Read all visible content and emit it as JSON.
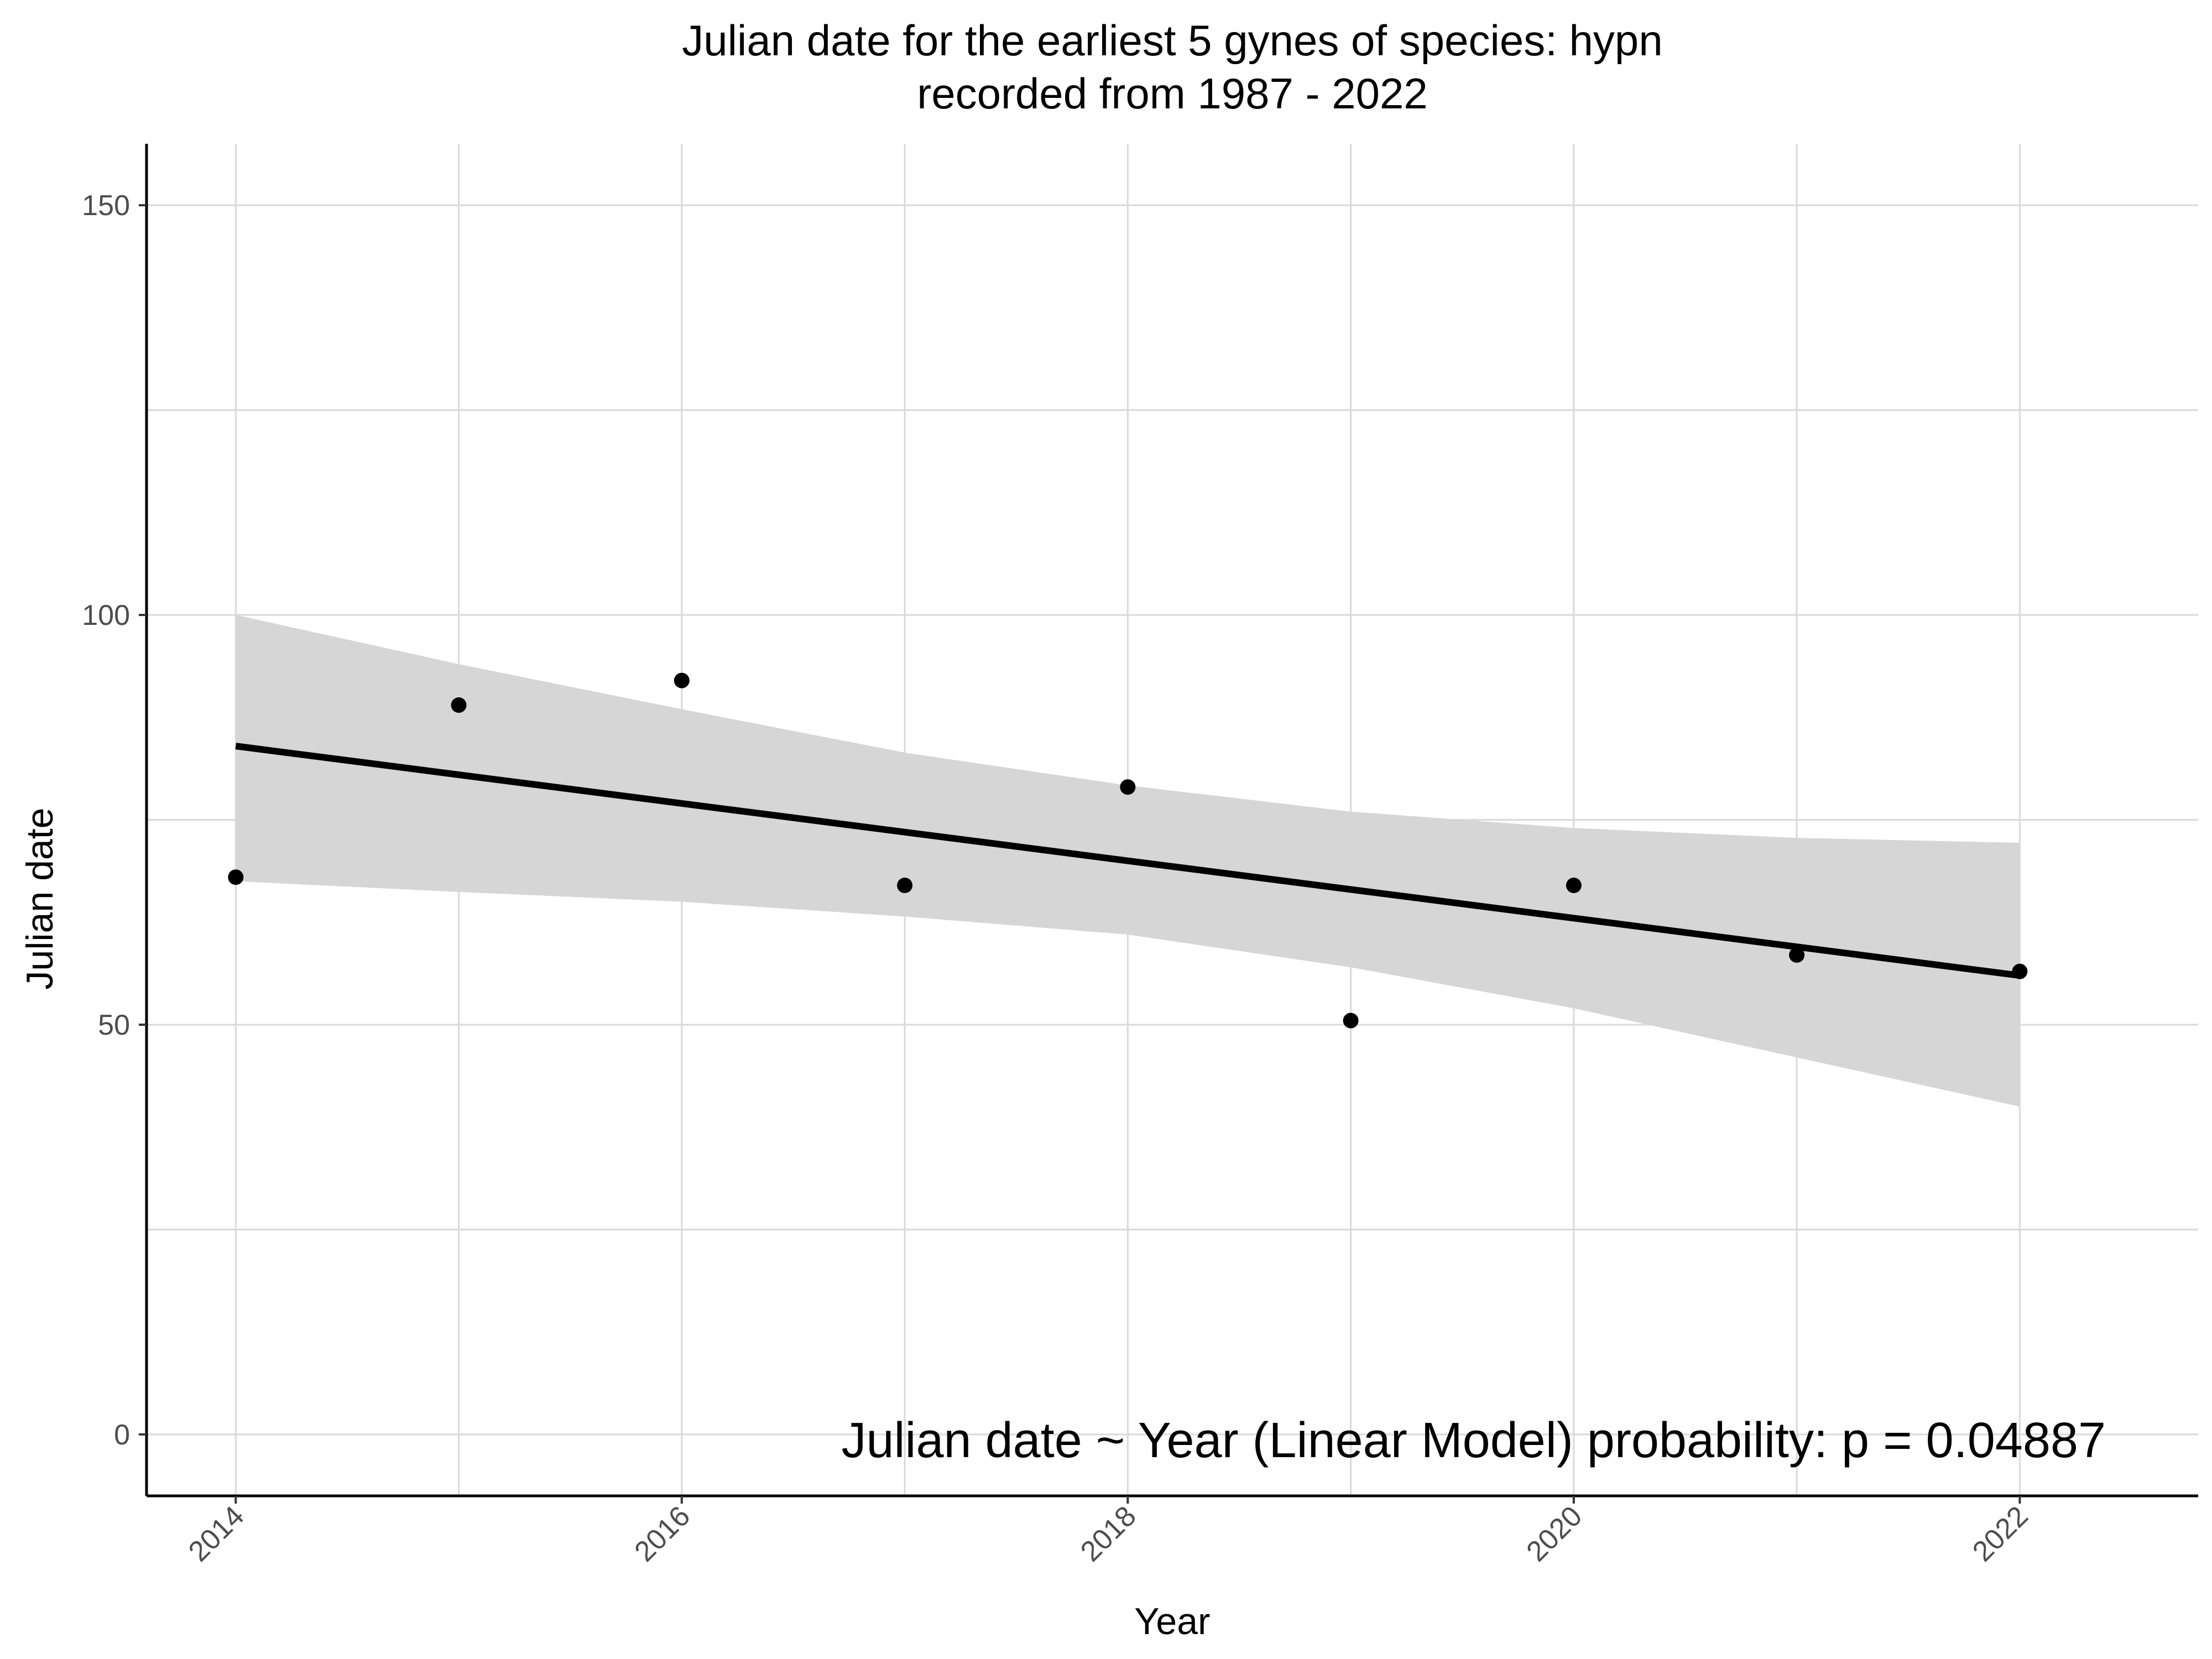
{
  "chart_data": {
    "type": "scatter",
    "title_lines": [
      "Julian date for the earliest 5 gynes of species: hypn",
      "recorded from 1987 - 2022"
    ],
    "xlabel": "Year",
    "ylabel": "Julian date",
    "x_ticks": [
      2014,
      2016,
      2018,
      2020,
      2022
    ],
    "x_tick_labels": [
      "2014",
      "2016",
      "2018",
      "2020",
      "2022"
    ],
    "y_ticks": [
      0,
      50,
      100,
      150
    ],
    "y_tick_labels": [
      "0",
      "50",
      "100",
      "150"
    ],
    "xlim": [
      2013.6,
      2022.8
    ],
    "ylim": [
      -7.5,
      157.5
    ],
    "grid": true,
    "series": [
      {
        "name": "points",
        "x": [
          2014,
          2015,
          2016,
          2017,
          2018,
          2019,
          2020,
          2021,
          2022
        ],
        "y": [
          68,
          89,
          92,
          67,
          79,
          50.5,
          67,
          58.5,
          56.5
        ]
      }
    ],
    "trend_line": {
      "x": [
        2014,
        2022
      ],
      "y": [
        84,
        56
      ]
    },
    "confidence_band": {
      "x": [
        2014,
        2015,
        2016,
        2017,
        2018,
        2019,
        2020,
        2021,
        2022
      ],
      "upper": [
        100,
        94,
        88.5,
        83.2,
        79.2,
        76,
        74,
        72.8,
        72.2
      ],
      "lower": [
        67.5,
        66.2,
        65,
        63.2,
        61,
        57,
        52,
        46,
        40
      ]
    },
    "annotation": "Julian date ~ Year (Linear Model) probability: p = 0.04887",
    "colors": {
      "point": "#000000",
      "line": "#000000",
      "band": "#d6d6d6",
      "grid": "#d9d9d9",
      "axis": "#000000"
    }
  }
}
